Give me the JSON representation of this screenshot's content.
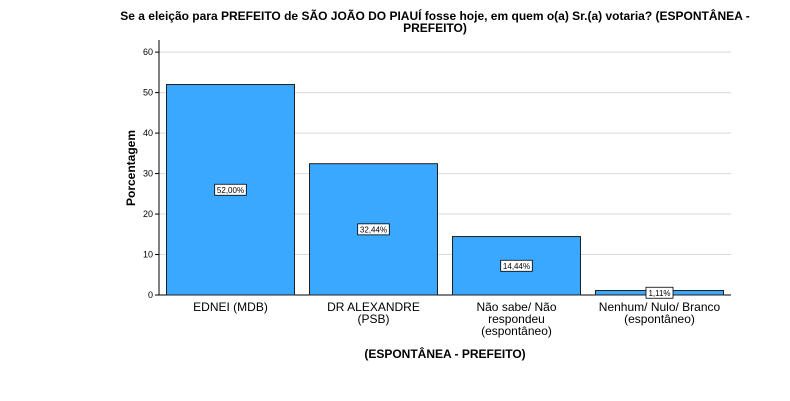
{
  "chart_data": {
    "type": "bar",
    "title": "Se a eleição para PREFEITO de SÃO JOÃO DO PIAUÍ fosse hoje, em quem o(a) Sr.(a) votaria? (ESPONTÂNEA - PREFEITO)",
    "xlabel": "(ESPONTÂNEA - PREFEITO)",
    "ylabel": "Porcentagem",
    "categories": [
      [
        "EDNEI (MDB)"
      ],
      [
        "DR ALEXANDRE",
        "(PSB)"
      ],
      [
        "Não sabe/ Não",
        "respondeu",
        "(espontâneo)"
      ],
      [
        "Nenhum/ Nulo/ Branco",
        "(espontâneo)"
      ]
    ],
    "values": [
      52.0,
      32.44,
      14.44,
      1.11
    ],
    "data_labels": [
      "52,00%",
      "32,44%",
      "14,44%",
      "1,11%"
    ],
    "ylim": [
      0,
      63
    ],
    "yticks": [
      0,
      10,
      20,
      30,
      40,
      50,
      60
    ],
    "grid": true,
    "bar_color": "#3aa8ff",
    "bar_edge_color": "#1f1f1f"
  }
}
